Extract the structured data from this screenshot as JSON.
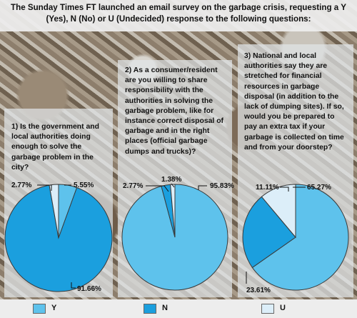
{
  "title": "The Sunday Times FT launched an email survey on the garbage crisis, requesting a Y (Yes), N (No) or U (Undecided) response to the following questions:",
  "colors": {
    "Y": "#5ec2ec",
    "N": "#1b9fde",
    "U": "#dceef9"
  },
  "legend": [
    {
      "key": "Y",
      "label": "Y"
    },
    {
      "key": "N",
      "label": "N"
    },
    {
      "key": "U",
      "label": "U"
    }
  ],
  "questions": [
    "1) Is the government and local authorities doing enough to solve the garbage problem in the city?",
    "2) As a consumer/resident are you willing to share responsibility with the authorities in solving the garbage problem, like for instance correct disposal of garbage and in the right places (official garbage dumps and trucks)?",
    "3) National and local authorities say they are stretched for financial resources in garbage disposal (in addition to the lack of dumping sites). If so, would you be prepared to pay an extra tax if your garbage is collected on time and from your doorstep?"
  ],
  "chart_data": [
    {
      "type": "pie",
      "title": "1) Is the government and local authorities doing enough to solve the garbage problem in the city?",
      "categories": [
        "Y",
        "N",
        "U"
      ],
      "values": [
        5.55,
        91.66,
        2.77
      ],
      "labels": [
        "5.55%",
        "91.66%",
        "2.77%"
      ]
    },
    {
      "type": "pie",
      "title": "2) As a consumer/resident are you willing to share responsibility with the authorities in solving the garbage problem, like for instance correct disposal of garbage and in the right places (official garbage dumps and trucks)?",
      "categories": [
        "Y",
        "N",
        "U"
      ],
      "values": [
        95.83,
        2.77,
        1.38
      ],
      "labels": [
        "95.83%",
        "2.77%",
        "1.38%"
      ]
    },
    {
      "type": "pie",
      "title": "3) National and local authorities say they are stretched for financial resources in garbage disposal (in addition to the lack of dumping sites). If so, would you be prepared to pay an extra tax if your garbage is collected on time and from your doorstep?",
      "categories": [
        "Y",
        "N",
        "U"
      ],
      "values": [
        65.27,
        23.61,
        11.11
      ],
      "labels": [
        "65.27%",
        "23.61%",
        "11.11%"
      ]
    }
  ]
}
